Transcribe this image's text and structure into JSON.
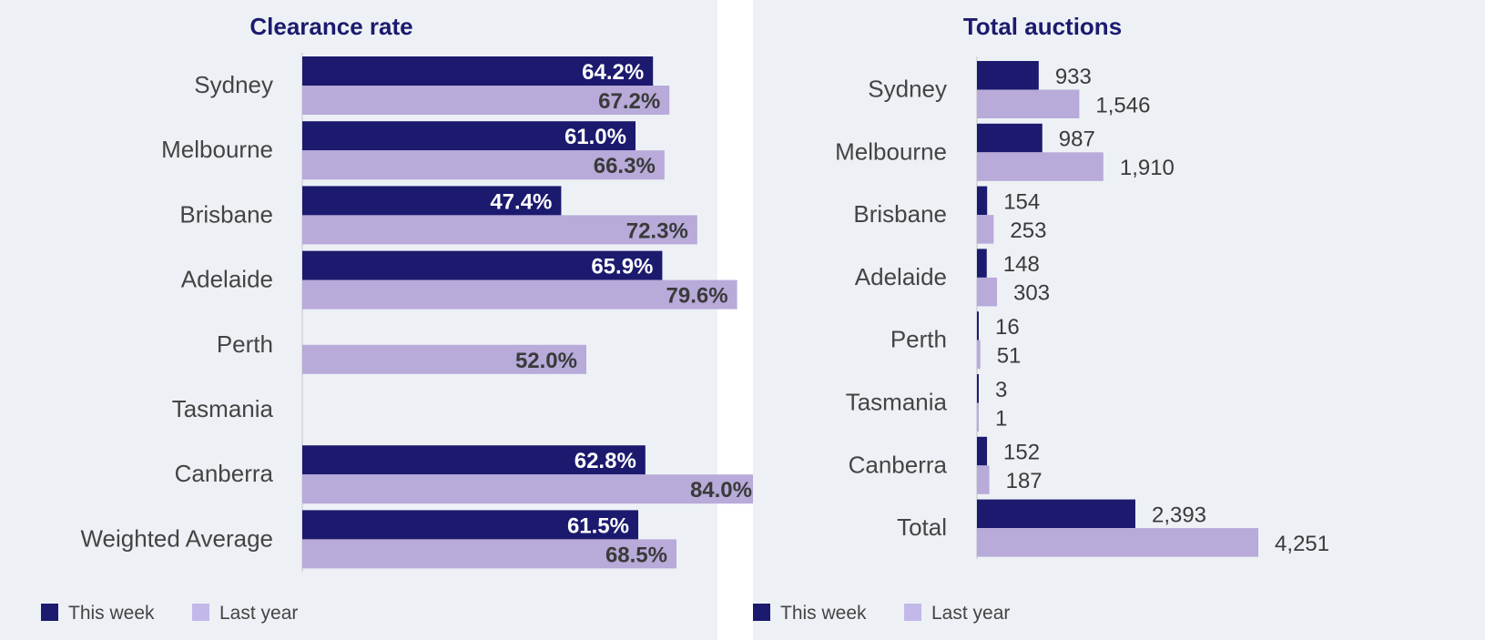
{
  "colors": {
    "panel_bg": "#edf1f5",
    "this_week": "#1c1a6e",
    "last_year": "#b8aad9",
    "legend_last_year": "#c2b9ea",
    "title": "#1c1a6e",
    "label_text": "#444444",
    "value_dark": "#3a3a3a",
    "value_light": "#ffffff",
    "axis": "#d0d4d8"
  },
  "legend": {
    "this_week": "This week",
    "last_year": "Last year"
  },
  "chart_data": [
    {
      "type": "bar",
      "orientation": "horizontal",
      "title": "Clearance rate",
      "categories": [
        "Sydney",
        "Melbourne",
        "Brisbane",
        "Adelaide",
        "Perth",
        "Tasmania",
        "Canberra",
        "Weighted Average"
      ],
      "series": [
        {
          "name": "This week",
          "values": [
            64.2,
            61.0,
            47.4,
            65.9,
            null,
            null,
            62.8,
            61.5
          ],
          "labels": [
            "64.2%",
            "61.0%",
            "47.4%",
            "65.9%",
            "",
            "",
            "62.8%",
            "61.5%"
          ]
        },
        {
          "name": "Last year",
          "values": [
            67.2,
            66.3,
            72.3,
            79.6,
            52.0,
            null,
            84.0,
            68.5
          ],
          "labels": [
            "67.2%",
            "66.3%",
            "72.3%",
            "79.6%",
            "52.0%",
            "",
            "84.0%",
            "68.5%"
          ]
        }
      ],
      "xlim": [
        0,
        100
      ],
      "value_label_position": "inside-end",
      "grid": false,
      "legend_position": "bottom-left"
    },
    {
      "type": "bar",
      "orientation": "horizontal",
      "title": "Total auctions",
      "categories": [
        "Sydney",
        "Melbourne",
        "Brisbane",
        "Adelaide",
        "Perth",
        "Tasmania",
        "Canberra",
        "Total"
      ],
      "series": [
        {
          "name": "This week",
          "values": [
            933,
            987,
            154,
            148,
            16,
            3,
            152,
            2393
          ],
          "labels": [
            "933",
            "987",
            "154",
            "148",
            "16",
            "3",
            "152",
            "2,393"
          ]
        },
        {
          "name": "Last year",
          "values": [
            1546,
            1910,
            253,
            303,
            51,
            1,
            187,
            4251
          ],
          "labels": [
            "1,546",
            "1,910",
            "253",
            "303",
            "51",
            "1",
            "187",
            "4,251"
          ]
        }
      ],
      "xlim": [
        0,
        5000
      ],
      "value_label_position": "outside-end",
      "grid": false,
      "legend_position": "bottom-left"
    }
  ]
}
